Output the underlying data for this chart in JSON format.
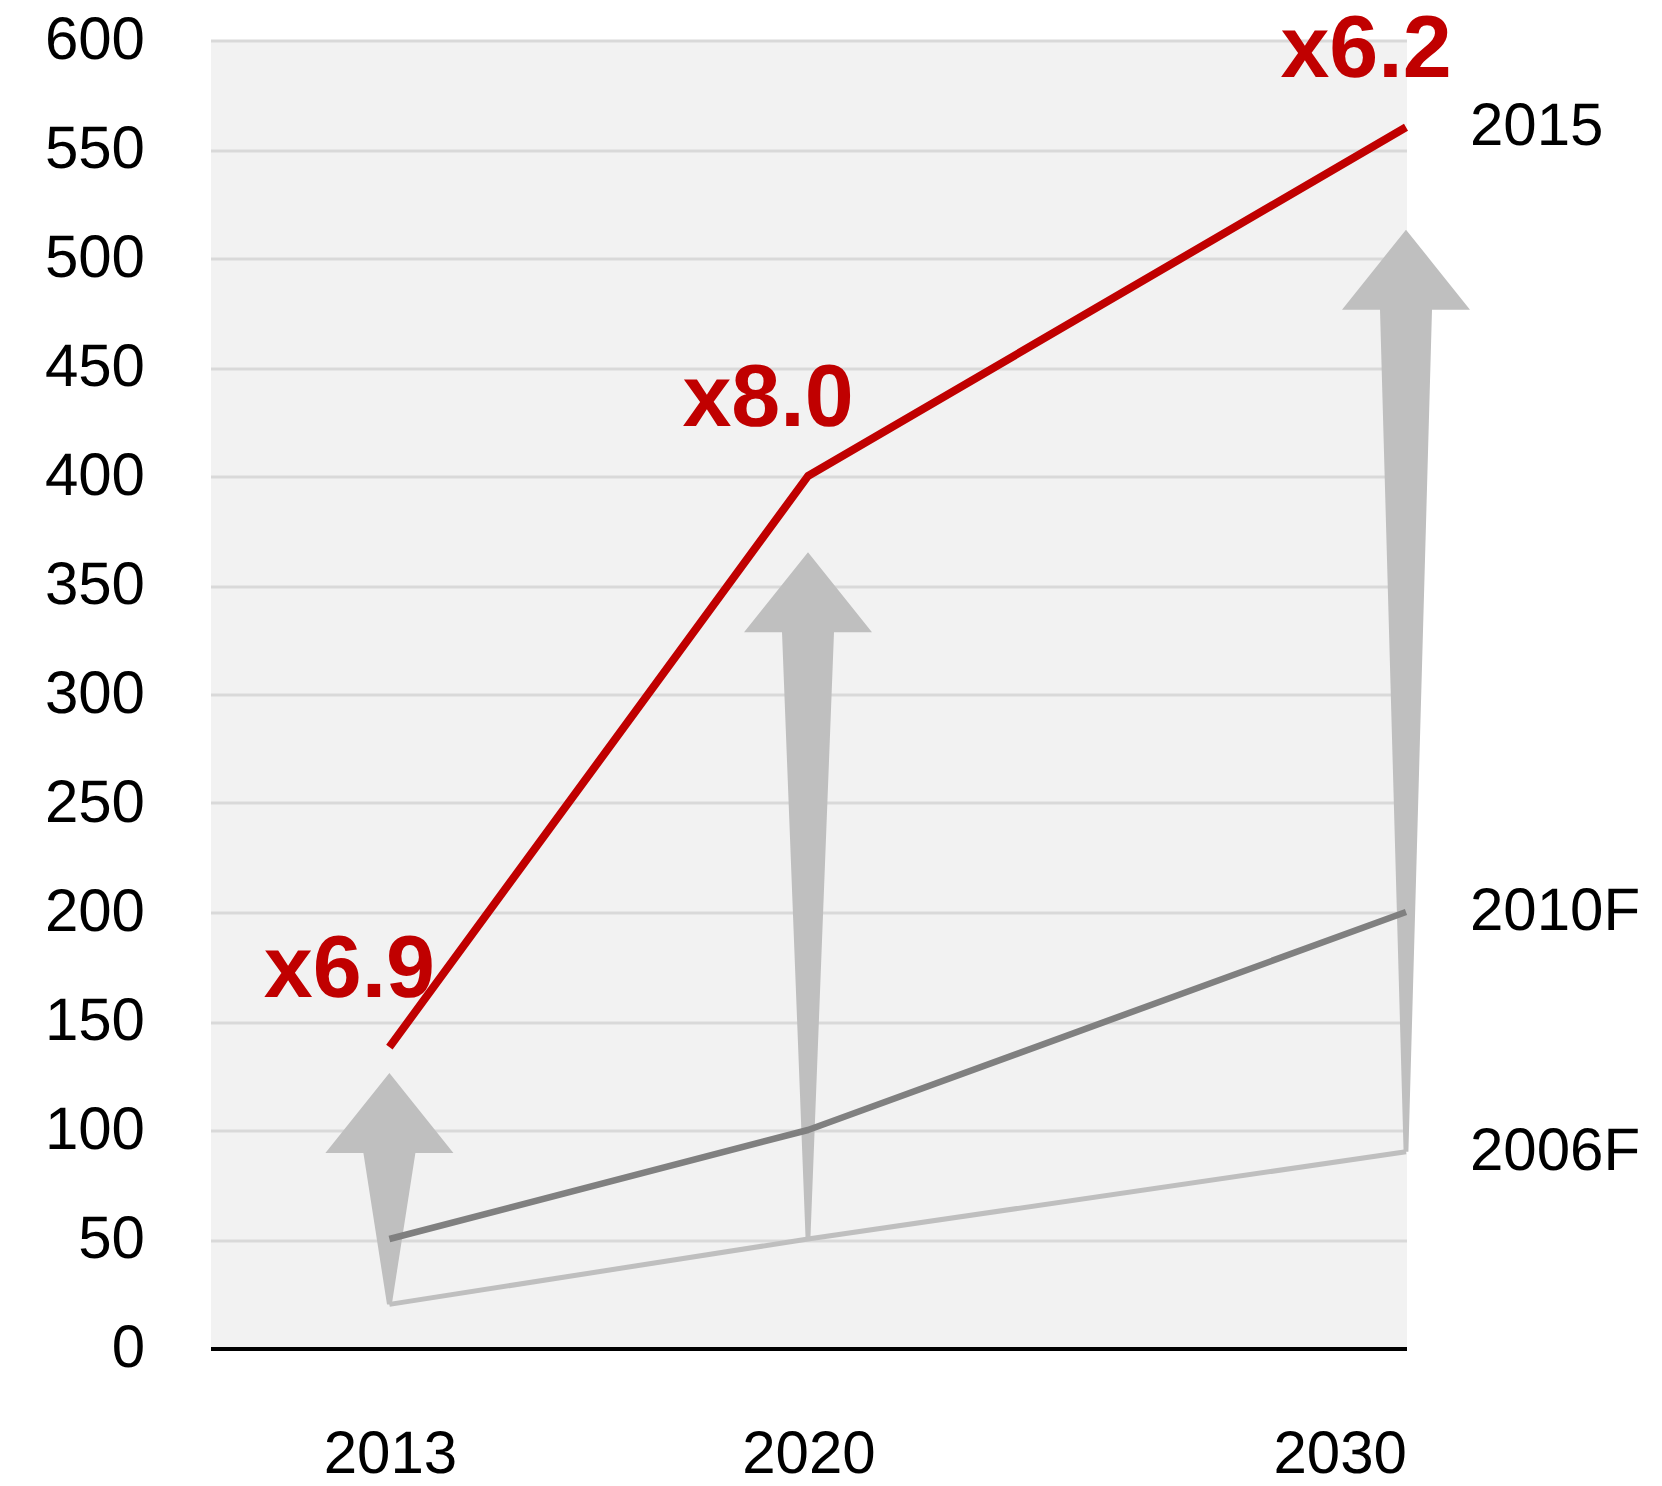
{
  "chart_data": {
    "type": "line",
    "x": [
      2013,
      2020,
      2030
    ],
    "series": [
      {
        "name": "2015",
        "color": "#c00000",
        "values": [
          138,
          400,
          560
        ]
      },
      {
        "name": "2010F",
        "color": "#808080",
        "values": [
          50,
          100,
          200
        ]
      },
      {
        "name": "2006F",
        "color": "#bfbfbf",
        "values": [
          20,
          50,
          90
        ]
      }
    ],
    "xlim": [
      2010,
      2030
    ],
    "xticks": [
      2013,
      2020,
      2030
    ],
    "ylim": [
      0,
      600
    ],
    "yticks": [
      0,
      50,
      100,
      150,
      200,
      250,
      300,
      350,
      400,
      450,
      500,
      550,
      600
    ],
    "grid": "y",
    "annotations": [
      {
        "text": "x6.9",
        "x": 2013,
        "y": 138
      },
      {
        "text": "x8.0",
        "x": 2020,
        "y": 400
      },
      {
        "text": "x6.2",
        "x": 2030,
        "y": 560
      }
    ]
  }
}
